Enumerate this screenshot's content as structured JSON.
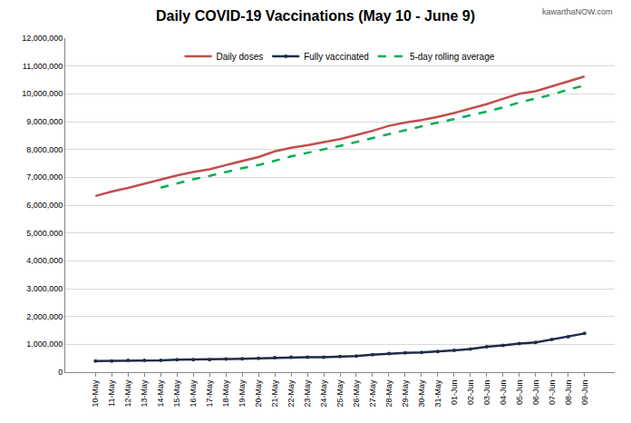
{
  "chart_data": {
    "type": "line",
    "title": "Daily COVID-19 Vaccinations (May 10 - June 9)",
    "annotations": [
      {
        "text": "kawarthaNOW.com"
      }
    ],
    "categories": [
      "10-May",
      "11-May",
      "12-May",
      "13-May",
      "14-May",
      "15-May",
      "16-May",
      "17-May",
      "18-May",
      "19-May",
      "20-May",
      "21-May",
      "22-May",
      "23-May",
      "24-May",
      "25-May",
      "26-May",
      "27-May",
      "28-May",
      "29-May",
      "30-May",
      "31-May",
      "01-Jun",
      "02-Jun",
      "03-Jun",
      "04-Jun",
      "05-Jun",
      "06-Jun",
      "07-Jun",
      "08-Jun",
      "09-Jun"
    ],
    "series": [
      {
        "name": "Daily doses",
        "color": "#c0504d",
        "line_style": "solid",
        "values": [
          6330000,
          6490000,
          6620000,
          6770000,
          6920000,
          7070000,
          7190000,
          7290000,
          7440000,
          7590000,
          7730000,
          7930000,
          8060000,
          8150000,
          8250000,
          8370000,
          8520000,
          8670000,
          8850000,
          8970000,
          9060000,
          9170000,
          9310000,
          9460000,
          9630000,
          9820000,
          10000000,
          10090000,
          10270000,
          10440000,
          10620000
        ]
      },
      {
        "name": "Fully vaccinated",
        "color": "#1f2d4a",
        "line_style": "solid",
        "marker": "circle",
        "values": [
          400000,
          400000,
          420000,
          420000,
          420000,
          450000,
          450000,
          450000,
          470000,
          480000,
          500000,
          520000,
          540000,
          540000,
          540000,
          560000,
          580000,
          630000,
          670000,
          690000,
          710000,
          740000,
          780000,
          830000,
          910000,
          960000,
          1030000,
          1070000,
          1170000,
          1270000,
          1390000
        ]
      },
      {
        "name": "5-day rolling average",
        "color": "#00b050",
        "line_style": "dash",
        "values": [
          null,
          null,
          null,
          null,
          6630000,
          6790000,
          6930000,
          7050000,
          7200000,
          7330000,
          7440000,
          7600000,
          7750000,
          7880000,
          8000000,
          8130000,
          8270000,
          8410000,
          8570000,
          8710000,
          8840000,
          8970000,
          9090000,
          9220000,
          9360000,
          9510000,
          9690000,
          9830000,
          9970000,
          10150000,
          10300000
        ]
      }
    ],
    "ylim": [
      0,
      12000000
    ],
    "yticks": [
      0,
      {
        "value": 1000000,
        "label": "1,000,000"
      },
      {
        "value": 2000000,
        "label": "2,000,000"
      },
      {
        "value": 3000000,
        "label": "3,000,000"
      },
      {
        "value": 4000000,
        "label": "4,000,000"
      },
      {
        "value": 5000000,
        "label": "5,000,000"
      },
      {
        "value": 6000000,
        "label": "6,000,000"
      },
      {
        "value": 7000000,
        "label": "7,000,000"
      },
      {
        "value": 8000000,
        "label": "8,000,000"
      },
      {
        "value": 9000000,
        "label": "9,000,000"
      },
      {
        "value": 10000000,
        "label": "10,000,000"
      },
      {
        "value": 11000000,
        "label": "11,000,000"
      },
      {
        "value": 12000000,
        "label": "12,000,000"
      }
    ],
    "grid": true,
    "legend": "top"
  }
}
